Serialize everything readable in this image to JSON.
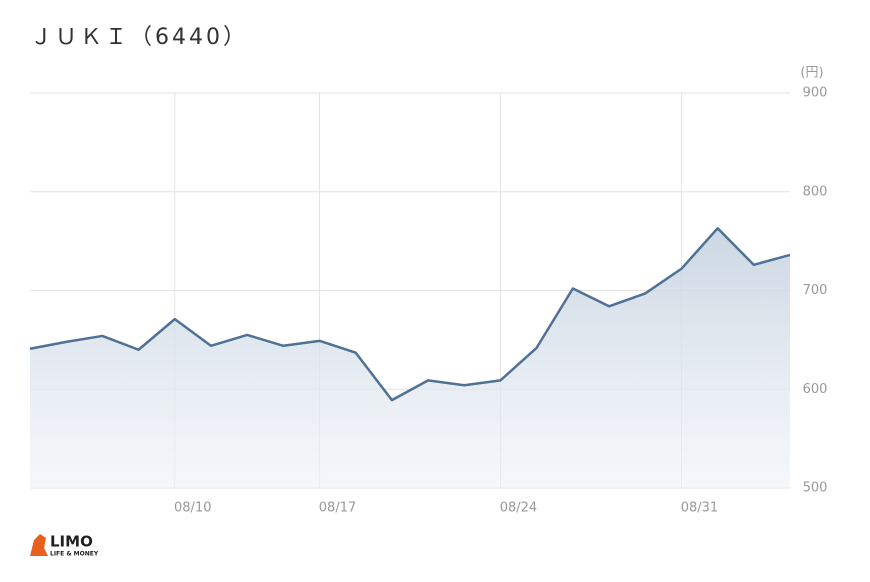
{
  "chart_data": {
    "type": "line",
    "title": "ＪＵＫＩ（6440）",
    "unit": "(円)",
    "categories": [
      null,
      null,
      null,
      null,
      "08/10",
      null,
      null,
      null,
      "08/17",
      null,
      null,
      null,
      null,
      "08/24",
      null,
      null,
      null,
      null,
      "08/31",
      null,
      null,
      null
    ],
    "series": [
      {
        "name": "JUKI",
        "color": "#4f7196",
        "values": [
          641,
          648,
          654,
          640,
          671,
          644,
          655,
          644,
          649,
          637,
          589,
          609,
          604,
          609,
          642,
          702,
          684,
          697,
          722,
          763,
          726,
          736
        ]
      }
    ],
    "ylim": [
      500,
      900
    ],
    "yticks": [
      500,
      600,
      700,
      800,
      900
    ],
    "grid": true,
    "logo": {
      "name": "LIMO",
      "tagline": "LIFE & MONEY"
    }
  }
}
